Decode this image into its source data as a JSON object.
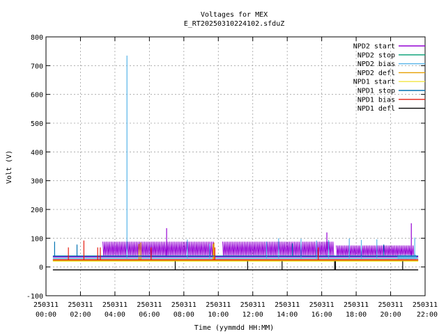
{
  "chart_data": {
    "type": "line",
    "title": "Voltages for MEX",
    "subtitle": "E_RT20250310224102.sfduZ",
    "xlabel": "Time (yymmdd HH:MM)",
    "ylabel": "Volt (V)",
    "ylim": [
      -100,
      800
    ],
    "yticks": [
      -100,
      0,
      100,
      200,
      300,
      400,
      500,
      600,
      700,
      800
    ],
    "xlim_hours": [
      0,
      22
    ],
    "xticks": [
      {
        "date": "250311",
        "time": "00:00",
        "hour": 0
      },
      {
        "date": "250311",
        "time": "02:00",
        "hour": 2
      },
      {
        "date": "250311",
        "time": "04:00",
        "hour": 4
      },
      {
        "date": "250311",
        "time": "06:00",
        "hour": 6
      },
      {
        "date": "250311",
        "time": "08:00",
        "hour": 8
      },
      {
        "date": "250311",
        "time": "10:00",
        "hour": 10
      },
      {
        "date": "250311",
        "time": "12:00",
        "hour": 12
      },
      {
        "date": "250311",
        "time": "14:00",
        "hour": 14
      },
      {
        "date": "250311",
        "time": "16:00",
        "hour": 16
      },
      {
        "date": "250311",
        "time": "18:00",
        "hour": 18
      },
      {
        "date": "250311",
        "time": "20:00",
        "hour": 20
      },
      {
        "date": "250311",
        "time": "22:00",
        "hour": 22
      }
    ],
    "grid": true,
    "legend_position": "top-right",
    "series": [
      {
        "name": "NPD2 start",
        "color": "#9400d3",
        "baseline": 35,
        "segments": [
          [
            3.3,
            9.75,
            35,
            88
          ],
          [
            10.25,
            16.7,
            35,
            88
          ],
          [
            16.85,
            21.35,
            35,
            75
          ]
        ],
        "spikes": [
          [
            7.0,
            135
          ],
          [
            16.3,
            120
          ],
          [
            21.2,
            152
          ]
        ]
      },
      {
        "name": "NPD2 stop",
        "color": "#009e73",
        "baseline": 25,
        "segments": [],
        "spikes": []
      },
      {
        "name": "NPD2 bias",
        "color": "#56b4e9",
        "baseline": 30,
        "segments": [
          [
            20.4,
            21.5,
            30,
            40
          ]
        ],
        "spikes": [
          [
            4.7,
            735
          ],
          [
            8.2,
            95
          ],
          [
            9.5,
            80
          ],
          [
            12.8,
            88
          ],
          [
            13.5,
            100
          ],
          [
            14.8,
            98
          ],
          [
            15.7,
            92
          ],
          [
            16.4,
            94
          ],
          [
            17.6,
            99
          ],
          [
            18.3,
            94
          ],
          [
            19.2,
            96
          ],
          [
            21.4,
            102
          ]
        ]
      },
      {
        "name": "NPD2 defl",
        "color": "#e69f00",
        "baseline": 22,
        "segments": [],
        "spikes": [
          [
            5.4,
            80
          ],
          [
            5.5,
            85
          ],
          [
            9.7,
            80
          ],
          [
            9.75,
            85
          ]
        ]
      },
      {
        "name": "NPD1 start",
        "color": "#f0e442",
        "baseline": 20,
        "segments": [],
        "spikes": []
      },
      {
        "name": "NPD1 stop",
        "color": "#0072b2",
        "baseline": 38,
        "segments": [],
        "spikes": [
          [
            0.5,
            88
          ],
          [
            1.8,
            78
          ],
          [
            14.3,
            82
          ],
          [
            19.6,
            78
          ]
        ]
      },
      {
        "name": "NPD1 bias",
        "color": "#e51e10",
        "baseline": 25,
        "segments": [],
        "spikes": [
          [
            1.3,
            68
          ],
          [
            2.2,
            92
          ],
          [
            3.0,
            68
          ],
          [
            3.15,
            68
          ],
          [
            6.1,
            68
          ],
          [
            9.8,
            68
          ],
          [
            15.8,
            68
          ]
        ]
      },
      {
        "name": "NPD1 defl",
        "color": "#000000",
        "baseline": -10,
        "segments": [],
        "spikes": [
          [
            7.5,
            20
          ],
          [
            11.7,
            20
          ],
          [
            13.7,
            20
          ],
          [
            16.75,
            20
          ],
          [
            16.8,
            20
          ],
          [
            20.7,
            20
          ]
        ]
      }
    ]
  }
}
